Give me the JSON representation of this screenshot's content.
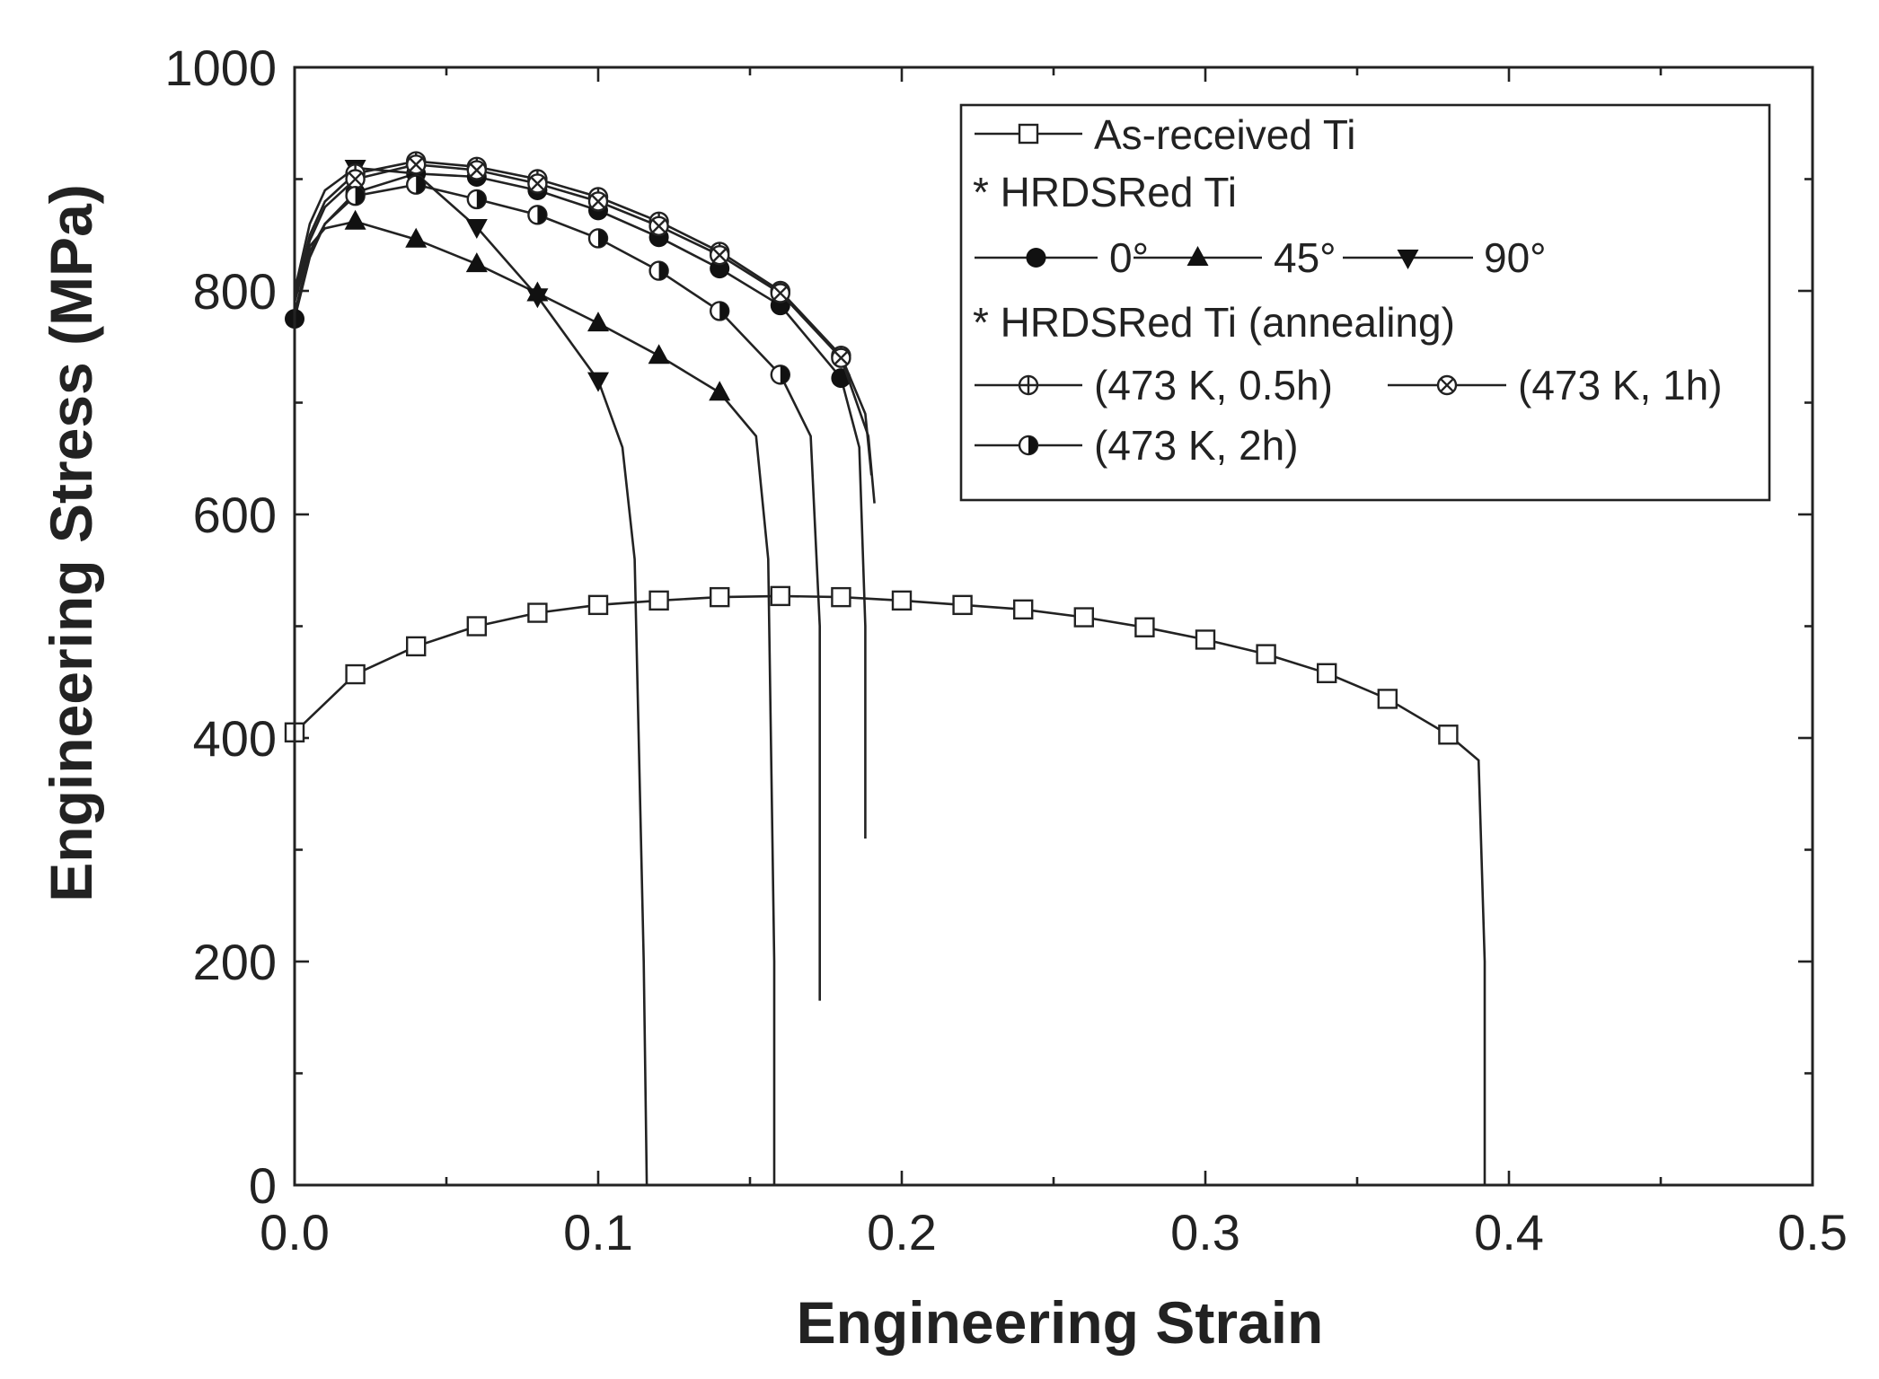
{
  "chart_data": {
    "type": "line",
    "xlabel": "Engineering Strain",
    "ylabel": "Engineering Stress (MPa)",
    "xlim": [
      0,
      0.5
    ],
    "ylim": [
      0,
      1000
    ],
    "xticks": [
      "0.0",
      "0.1",
      "0.2",
      "0.3",
      "0.4",
      "0.5"
    ],
    "yticks": [
      "0",
      "200",
      "400",
      "600",
      "800",
      "1000"
    ],
    "legend_position": "top-right",
    "legend_headers": {
      "hrdsred": "* HRDSRed Ti",
      "annealing": "* HRDSRed Ti (annealing)"
    },
    "series": [
      {
        "name": "As-received Ti",
        "marker": "square-open",
        "x": [
          0,
          0.02,
          0.04,
          0.06,
          0.08,
          0.1,
          0.12,
          0.14,
          0.16,
          0.18,
          0.2,
          0.22,
          0.24,
          0.26,
          0.28,
          0.3,
          0.32,
          0.34,
          0.36,
          0.38,
          0.39,
          0.392,
          0.392
        ],
        "y": [
          405,
          457,
          482,
          500,
          512,
          519,
          523,
          526,
          527,
          526,
          523,
          519,
          515,
          508,
          499,
          488,
          475,
          458,
          435,
          403,
          380,
          200,
          0
        ],
        "marker_x": [
          0,
          0.02,
          0.04,
          0.06,
          0.08,
          0.1,
          0.12,
          0.14,
          0.16,
          0.18,
          0.2,
          0.22,
          0.24,
          0.26,
          0.28,
          0.3,
          0.32,
          0.34,
          0.36,
          0.38
        ],
        "marker_y": [
          405,
          457,
          482,
          500,
          512,
          519,
          523,
          526,
          527,
          526,
          523,
          519,
          515,
          508,
          499,
          488,
          475,
          458,
          435,
          403
        ]
      },
      {
        "name": "0°",
        "marker": "circle-filled",
        "x": [
          0,
          0.005,
          0.01,
          0.02,
          0.04,
          0.06,
          0.08,
          0.1,
          0.12,
          0.14,
          0.16,
          0.18,
          0.186,
          0.188,
          0.188
        ],
        "y": [
          775,
          830,
          860,
          888,
          905,
          902,
          890,
          872,
          848,
          820,
          787,
          722,
          660,
          500,
          310
        ],
        "marker_x": [
          0,
          0.02,
          0.04,
          0.06,
          0.08,
          0.1,
          0.12,
          0.14,
          0.16,
          0.18
        ],
        "marker_y": [
          775,
          888,
          905,
          902,
          890,
          872,
          848,
          820,
          787,
          722
        ]
      },
      {
        "name": "45°",
        "marker": "triangle-up-filled",
        "x": [
          0,
          0.005,
          0.01,
          0.02,
          0.04,
          0.06,
          0.08,
          0.1,
          0.12,
          0.14,
          0.152,
          0.156,
          0.158,
          0.158
        ],
        "y": [
          790,
          840,
          856,
          862,
          846,
          824,
          798,
          771,
          742,
          709,
          670,
          560,
          200,
          0
        ],
        "marker_x": [
          0.02,
          0.04,
          0.06,
          0.08,
          0.1,
          0.12,
          0.14
        ],
        "marker_y": [
          862,
          846,
          824,
          798,
          771,
          742,
          709
        ]
      },
      {
        "name": "90°",
        "marker": "triangle-down-filled",
        "x": [
          0,
          0.005,
          0.01,
          0.02,
          0.04,
          0.06,
          0.08,
          0.1,
          0.108,
          0.112,
          0.115,
          0.116
        ],
        "y": [
          800,
          860,
          890,
          910,
          905,
          857,
          795,
          720,
          660,
          560,
          200,
          0
        ],
        "marker_x": [
          0.02,
          0.04,
          0.06,
          0.08,
          0.1
        ],
        "marker_y": [
          910,
          905,
          857,
          795,
          720
        ]
      },
      {
        "name": "(473 K, 0.5h)",
        "marker": "circle-plus",
        "x": [
          0,
          0.005,
          0.01,
          0.02,
          0.04,
          0.06,
          0.08,
          0.1,
          0.12,
          0.14,
          0.16,
          0.18,
          0.188,
          0.19
        ],
        "y": [
          795,
          850,
          880,
          905,
          916,
          911,
          900,
          884,
          862,
          835,
          800,
          742,
          690,
          635
        ],
        "marker_x": [
          0.02,
          0.04,
          0.06,
          0.08,
          0.1,
          0.12,
          0.14,
          0.16,
          0.18
        ],
        "marker_y": [
          905,
          916,
          911,
          900,
          884,
          862,
          835,
          800,
          742
        ]
      },
      {
        "name": "(473 K, 1h)",
        "marker": "circle-cross",
        "x": [
          0,
          0.005,
          0.01,
          0.02,
          0.04,
          0.06,
          0.08,
          0.1,
          0.12,
          0.14,
          0.16,
          0.18,
          0.189,
          0.191
        ],
        "y": [
          790,
          845,
          875,
          900,
          913,
          908,
          896,
          880,
          858,
          832,
          798,
          740,
          670,
          610
        ],
        "marker_x": [
          0.02,
          0.04,
          0.06,
          0.08,
          0.1,
          0.12,
          0.14,
          0.16,
          0.18
        ],
        "marker_y": [
          900,
          913,
          908,
          896,
          880,
          858,
          832,
          798,
          740
        ]
      },
      {
        "name": "(473 K, 2h)",
        "marker": "circle-half",
        "x": [
          0,
          0.005,
          0.01,
          0.02,
          0.04,
          0.06,
          0.08,
          0.1,
          0.12,
          0.14,
          0.16,
          0.17,
          0.173,
          0.173
        ],
        "y": [
          780,
          835,
          860,
          885,
          895,
          882,
          868,
          847,
          818,
          782,
          725,
          670,
          500,
          165
        ],
        "marker_x": [
          0.02,
          0.04,
          0.06,
          0.08,
          0.1,
          0.12,
          0.14,
          0.16
        ],
        "marker_y": [
          885,
          895,
          882,
          868,
          847,
          818,
          782,
          725
        ]
      }
    ]
  }
}
